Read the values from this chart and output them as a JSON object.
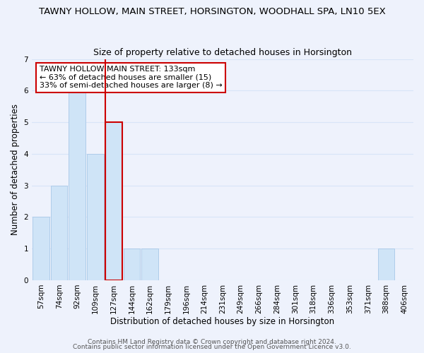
{
  "title": "TAWNY HOLLOW, MAIN STREET, HORSINGTON, WOODHALL SPA, LN10 5EX",
  "subtitle": "Size of property relative to detached houses in Horsington",
  "xlabel": "Distribution of detached houses by size in Horsington",
  "ylabel": "Number of detached properties",
  "bins": [
    "57sqm",
    "74sqm",
    "92sqm",
    "109sqm",
    "127sqm",
    "144sqm",
    "162sqm",
    "179sqm",
    "196sqm",
    "214sqm",
    "231sqm",
    "249sqm",
    "266sqm",
    "284sqm",
    "301sqm",
    "318sqm",
    "336sqm",
    "353sqm",
    "371sqm",
    "388sqm",
    "406sqm"
  ],
  "counts": [
    2,
    3,
    6,
    4,
    5,
    1,
    1,
    0,
    0,
    0,
    0,
    0,
    0,
    0,
    0,
    0,
    0,
    0,
    0,
    1,
    0
  ],
  "bar_color": "#cfe4f7",
  "bar_edge_color": "#a8c8e8",
  "highlight_bin_index": 4,
  "highlight_line_color": "#cc0000",
  "ylim": [
    0,
    7
  ],
  "yticks": [
    0,
    1,
    2,
    3,
    4,
    5,
    6,
    7
  ],
  "annotation_title": "TAWNY HOLLOW MAIN STREET: 133sqm",
  "annotation_line1": "← 63% of detached houses are smaller (15)",
  "annotation_line2": "33% of semi-detached houses are larger (8) →",
  "annotation_box_color": "#ffffff",
  "annotation_box_edge": "#cc0000",
  "footer1": "Contains HM Land Registry data © Crown copyright and database right 2024.",
  "footer2": "Contains public sector information licensed under the Open Government Licence v3.0.",
  "background_color": "#eef2fc",
  "grid_color": "#d8e4f8",
  "title_fontsize": 9.5,
  "subtitle_fontsize": 9,
  "axis_label_fontsize": 8.5,
  "tick_fontsize": 7.5,
  "annotation_fontsize": 8,
  "footer_fontsize": 6.5
}
